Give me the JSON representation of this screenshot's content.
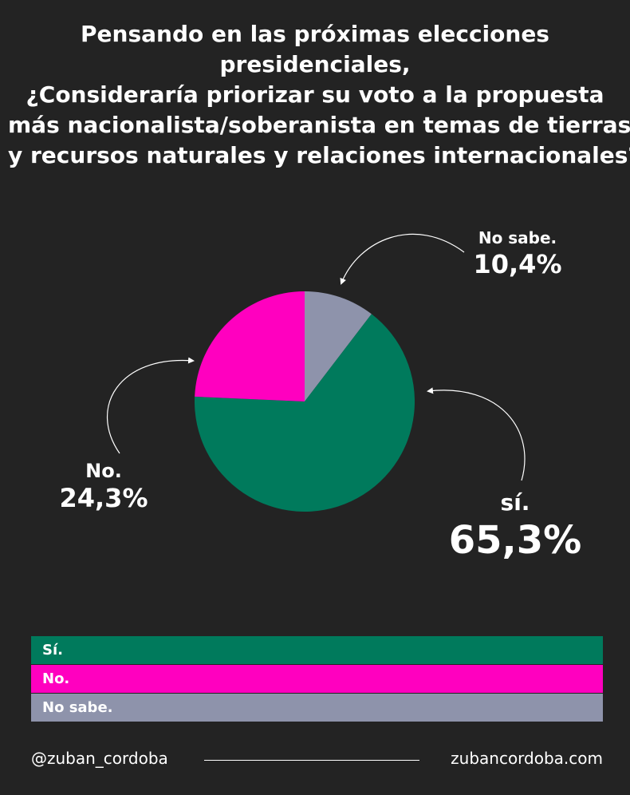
{
  "title_lines": [
    "Pensando en las próximas elecciones",
    "presidenciales,",
    "¿Consideraría priorizar su voto a la propuesta",
    "más nacionalista/soberanista en temas de tierras",
    "y recursos naturales y relaciones internacionales?"
  ],
  "chart_data": {
    "type": "pie",
    "slices": [
      {
        "label": "No sabe.",
        "value": 10.4,
        "display": "10,4%",
        "color": "#8e93ab"
      },
      {
        "label": "sí.",
        "value": 65.3,
        "display": "65,3%",
        "color": "#007a5c"
      },
      {
        "label": "No.",
        "value": 24.3,
        "display": "24,3%",
        "color": "#ff00bf"
      }
    ],
    "legend": [
      {
        "label": "Sí.",
        "color": "#007a5c"
      },
      {
        "label": "No.",
        "color": "#ff00bf"
      },
      {
        "label": "No sabe.",
        "color": "#8e93ab"
      }
    ]
  },
  "footer": {
    "handle": "@zuban_cordoba",
    "website": "zubancordoba.com"
  }
}
